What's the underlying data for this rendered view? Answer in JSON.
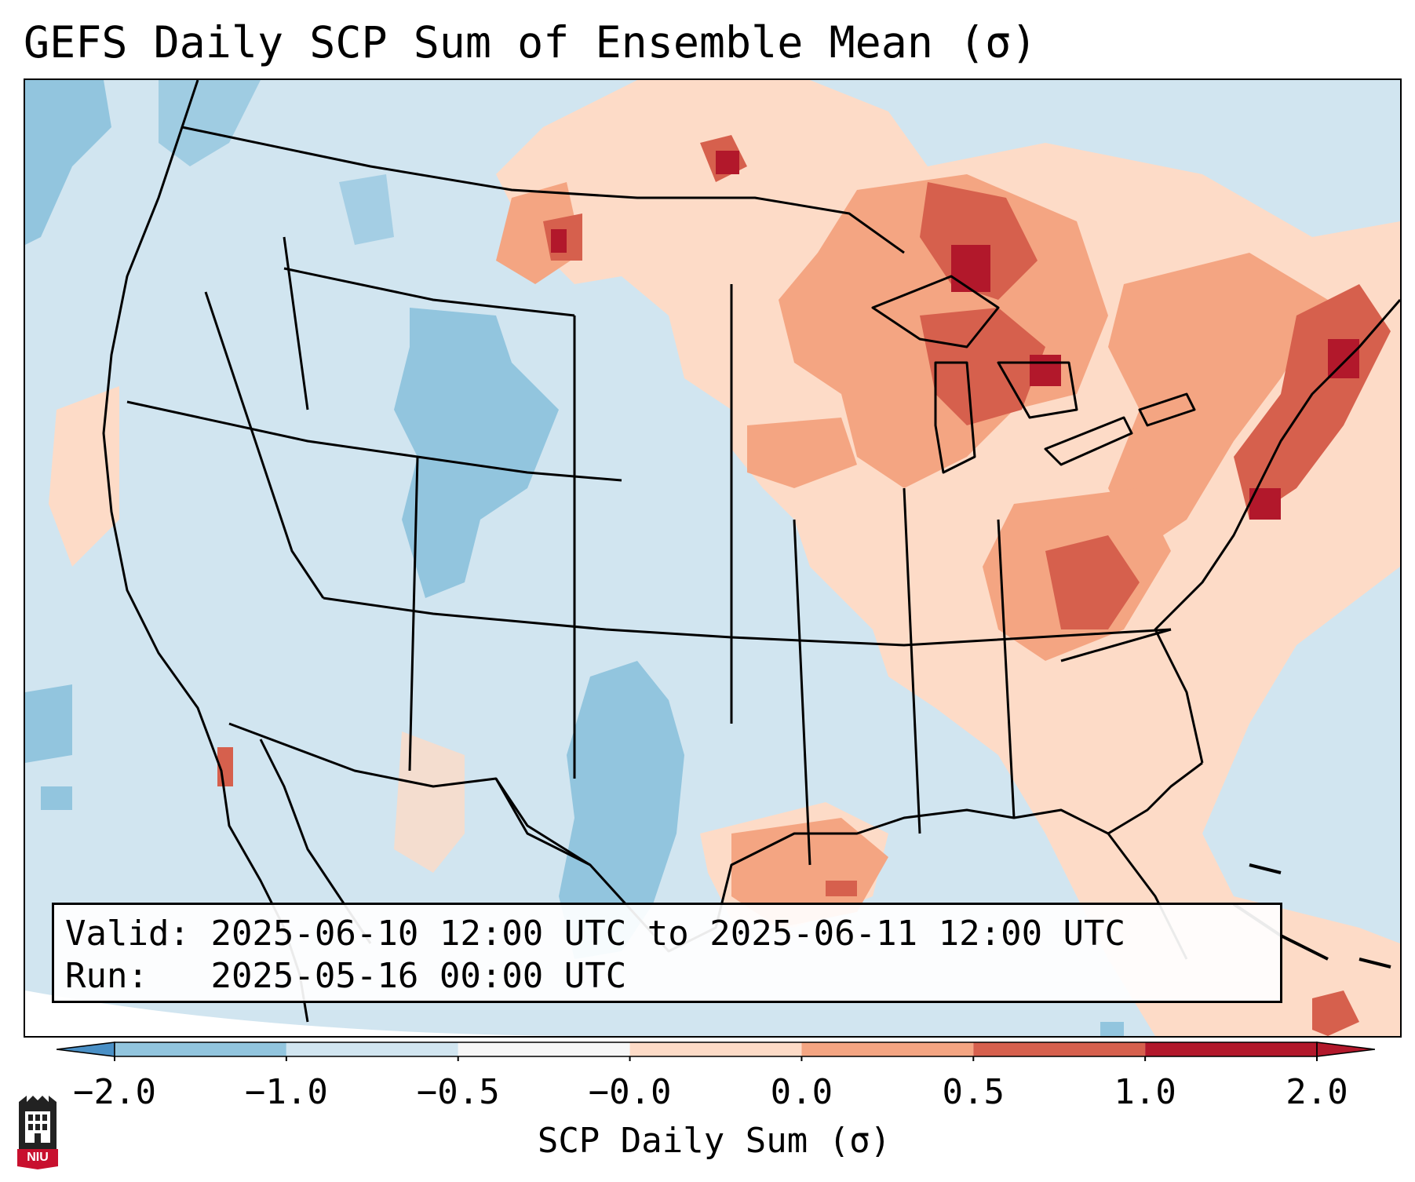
{
  "title": "GEFS Daily SCP Sum of Ensemble Mean (σ)",
  "info": {
    "valid_label": "Valid:",
    "valid_value": "2025-06-10 12:00 UTC to 2025-06-11 12:00 UTC",
    "run_label": "Run:",
    "run_value": "2025-05-16 00:00 UTC"
  },
  "colorbar": {
    "label": "SCP Daily Sum (σ)",
    "tick_labels": [
      "−2.0",
      "−1.0",
      "−0.5",
      "−0.0",
      "0.0",
      "0.5",
      "1.0",
      "2.0"
    ],
    "levels": [
      -2.0,
      -1.0,
      -0.5,
      0.0,
      0.5,
      1.0,
      2.0
    ],
    "colors": [
      "#4a90c6",
      "#92c5de",
      "#d1e5f0",
      "#f7f7f7",
      "#fddbc7",
      "#f4a582",
      "#d6604d",
      "#b2182b"
    ],
    "extend": "both"
  },
  "logo": {
    "text": "NIU"
  },
  "map": {
    "region": "Contiguous United States and adjacent Canada, Mexico, Gulf of Mexico and Caribbean",
    "anomaly_regions": [
      {
        "name": "Great Lakes / Upper Midwest",
        "category": 1.0
      },
      {
        "name": "Mid-Atlantic / Northeast coast",
        "category": 1.0
      },
      {
        "name": "Ohio Valley",
        "category": 0.5
      },
      {
        "name": "Texas Gulf coast",
        "category": 0.5
      },
      {
        "name": "Western High Plains / Four Corners",
        "category": -0.5
      },
      {
        "name": "West Texas / Southern Plains",
        "category": -0.5
      }
    ]
  }
}
